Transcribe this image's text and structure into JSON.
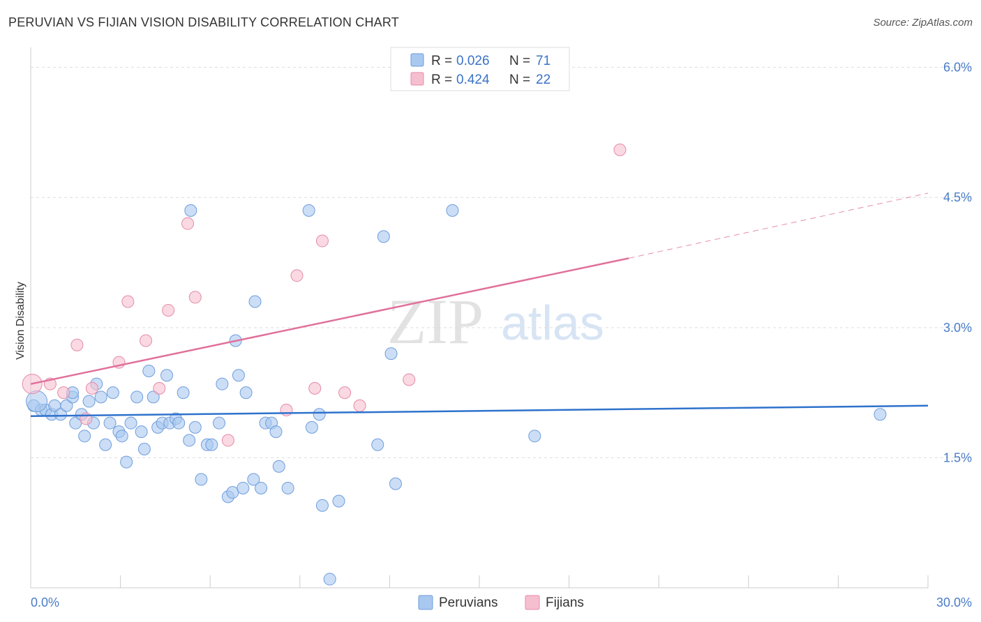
{
  "header": {
    "title": "PERUVIAN VS FIJIAN VISION DISABILITY CORRELATION CHART",
    "source": "Source: ZipAtlas.com"
  },
  "watermark": {
    "zip": "ZIP",
    "atlas": "atlas"
  },
  "colors": {
    "peruvian_fill": "#a9c8f0",
    "peruvian_stroke": "#6f9ddc",
    "peruvian_line": "#2e72cc",
    "fijian_fill": "#f6bfd0",
    "fijian_stroke": "#e58aa8",
    "fijian_line": "#e0709a",
    "grid": "#dddddd",
    "tick_text": "#4a7cc7"
  },
  "legend": {
    "rows": [
      {
        "r_label": "R = ",
        "r_value": "0.026",
        "n_label": "N = ",
        "n_value": "71"
      },
      {
        "r_label": "R = ",
        "r_value": "0.424",
        "n_label": "N = ",
        "n_value": "22"
      }
    ]
  },
  "bottom_legend": {
    "items": [
      "Peruvians",
      "Fijians"
    ]
  },
  "chart_data": {
    "type": "scatter",
    "title": "PERUVIAN VS FIJIAN VISION DISABILITY CORRELATION CHART",
    "xlabel": "",
    "ylabel": "Vision Disability",
    "xlim": [
      0,
      30
    ],
    "ylim": [
      0,
      6.15
    ],
    "x_tick_labels": [
      {
        "value": 0,
        "label": "0.0%"
      },
      {
        "value": 30,
        "label": "30.0%"
      }
    ],
    "x_minor_ticks": [
      3,
      6,
      9,
      12,
      15,
      18,
      21,
      24,
      27,
      30
    ],
    "y_ticks": [
      {
        "value": 1.5,
        "label": "1.5%"
      },
      {
        "value": 3.0,
        "label": "3.0%"
      },
      {
        "value": 4.5,
        "label": "4.5%"
      },
      {
        "value": 6.0,
        "label": "6.0%"
      }
    ],
    "grid": true,
    "series": [
      {
        "name": "Peruvians",
        "r": 0.026,
        "n": 71,
        "trend": {
          "x": [
            0,
            30
          ],
          "y": [
            1.98,
            2.1
          ]
        },
        "points": [
          [
            0.1,
            2.1
          ],
          [
            0.35,
            2.05
          ],
          [
            0.5,
            2.05
          ],
          [
            0.7,
            2.0
          ],
          [
            0.8,
            2.1
          ],
          [
            1.0,
            2.0
          ],
          [
            1.2,
            2.1
          ],
          [
            1.4,
            2.2
          ],
          [
            1.4,
            2.25
          ],
          [
            1.5,
            1.9
          ],
          [
            1.7,
            2.0
          ],
          [
            1.8,
            1.75
          ],
          [
            1.95,
            2.15
          ],
          [
            2.1,
            1.9
          ],
          [
            2.2,
            2.35
          ],
          [
            2.35,
            2.2
          ],
          [
            2.5,
            1.65
          ],
          [
            2.65,
            1.9
          ],
          [
            2.75,
            2.25
          ],
          [
            2.95,
            1.8
          ],
          [
            3.05,
            1.75
          ],
          [
            3.2,
            1.45
          ],
          [
            3.35,
            1.9
          ],
          [
            3.55,
            2.2
          ],
          [
            3.7,
            1.8
          ],
          [
            3.8,
            1.6
          ],
          [
            3.95,
            2.5
          ],
          [
            4.1,
            2.2
          ],
          [
            4.25,
            1.85
          ],
          [
            4.4,
            1.9
          ],
          [
            4.55,
            2.45
          ],
          [
            4.65,
            1.9
          ],
          [
            4.85,
            1.95
          ],
          [
            4.95,
            1.9
          ],
          [
            5.1,
            2.25
          ],
          [
            5.3,
            1.7
          ],
          [
            5.35,
            4.35
          ],
          [
            5.5,
            1.85
          ],
          [
            5.7,
            1.25
          ],
          [
            5.9,
            1.65
          ],
          [
            6.05,
            1.65
          ],
          [
            6.3,
            1.9
          ],
          [
            6.4,
            2.35
          ],
          [
            6.6,
            1.05
          ],
          [
            6.75,
            1.1
          ],
          [
            6.85,
            2.85
          ],
          [
            6.95,
            2.45
          ],
          [
            7.1,
            1.15
          ],
          [
            7.2,
            2.25
          ],
          [
            7.45,
            1.25
          ],
          [
            7.5,
            3.3
          ],
          [
            7.7,
            1.15
          ],
          [
            7.85,
            1.9
          ],
          [
            8.05,
            1.9
          ],
          [
            8.2,
            1.8
          ],
          [
            8.3,
            1.4
          ],
          [
            8.6,
            1.15
          ],
          [
            9.3,
            4.35
          ],
          [
            9.4,
            1.85
          ],
          [
            9.65,
            2.0
          ],
          [
            9.75,
            0.95
          ],
          [
            10.0,
            0.1
          ],
          [
            10.3,
            1.0
          ],
          [
            11.6,
            1.65
          ],
          [
            11.8,
            4.05
          ],
          [
            12.05,
            2.7
          ],
          [
            12.2,
            1.2
          ],
          [
            14.1,
            4.35
          ],
          [
            16.85,
            1.75
          ],
          [
            28.4,
            2.0
          ],
          [
            0.2,
            2.15
          ]
        ]
      },
      {
        "name": "Fijians",
        "r": 0.424,
        "n": 22,
        "trend": {
          "x": [
            0,
            20
          ],
          "y": [
            2.35,
            3.8
          ]
        },
        "trend_dashed": {
          "x": [
            20,
            30
          ],
          "y": [
            3.8,
            4.55
          ]
        },
        "points": [
          [
            0.05,
            2.35
          ],
          [
            0.65,
            2.35
          ],
          [
            1.1,
            2.25
          ],
          [
            1.55,
            2.8
          ],
          [
            2.05,
            2.3
          ],
          [
            1.85,
            1.95
          ],
          [
            2.95,
            2.6
          ],
          [
            3.25,
            3.3
          ],
          [
            3.85,
            2.85
          ],
          [
            4.3,
            2.3
          ],
          [
            4.6,
            3.2
          ],
          [
            5.25,
            4.2
          ],
          [
            5.5,
            3.35
          ],
          [
            6.6,
            1.7
          ],
          [
            8.55,
            2.05
          ],
          [
            8.9,
            3.6
          ],
          [
            9.5,
            2.3
          ],
          [
            9.75,
            4.0
          ],
          [
            10.5,
            2.25
          ],
          [
            11.0,
            2.1
          ],
          [
            12.65,
            2.4
          ],
          [
            19.7,
            5.05
          ]
        ]
      }
    ]
  }
}
